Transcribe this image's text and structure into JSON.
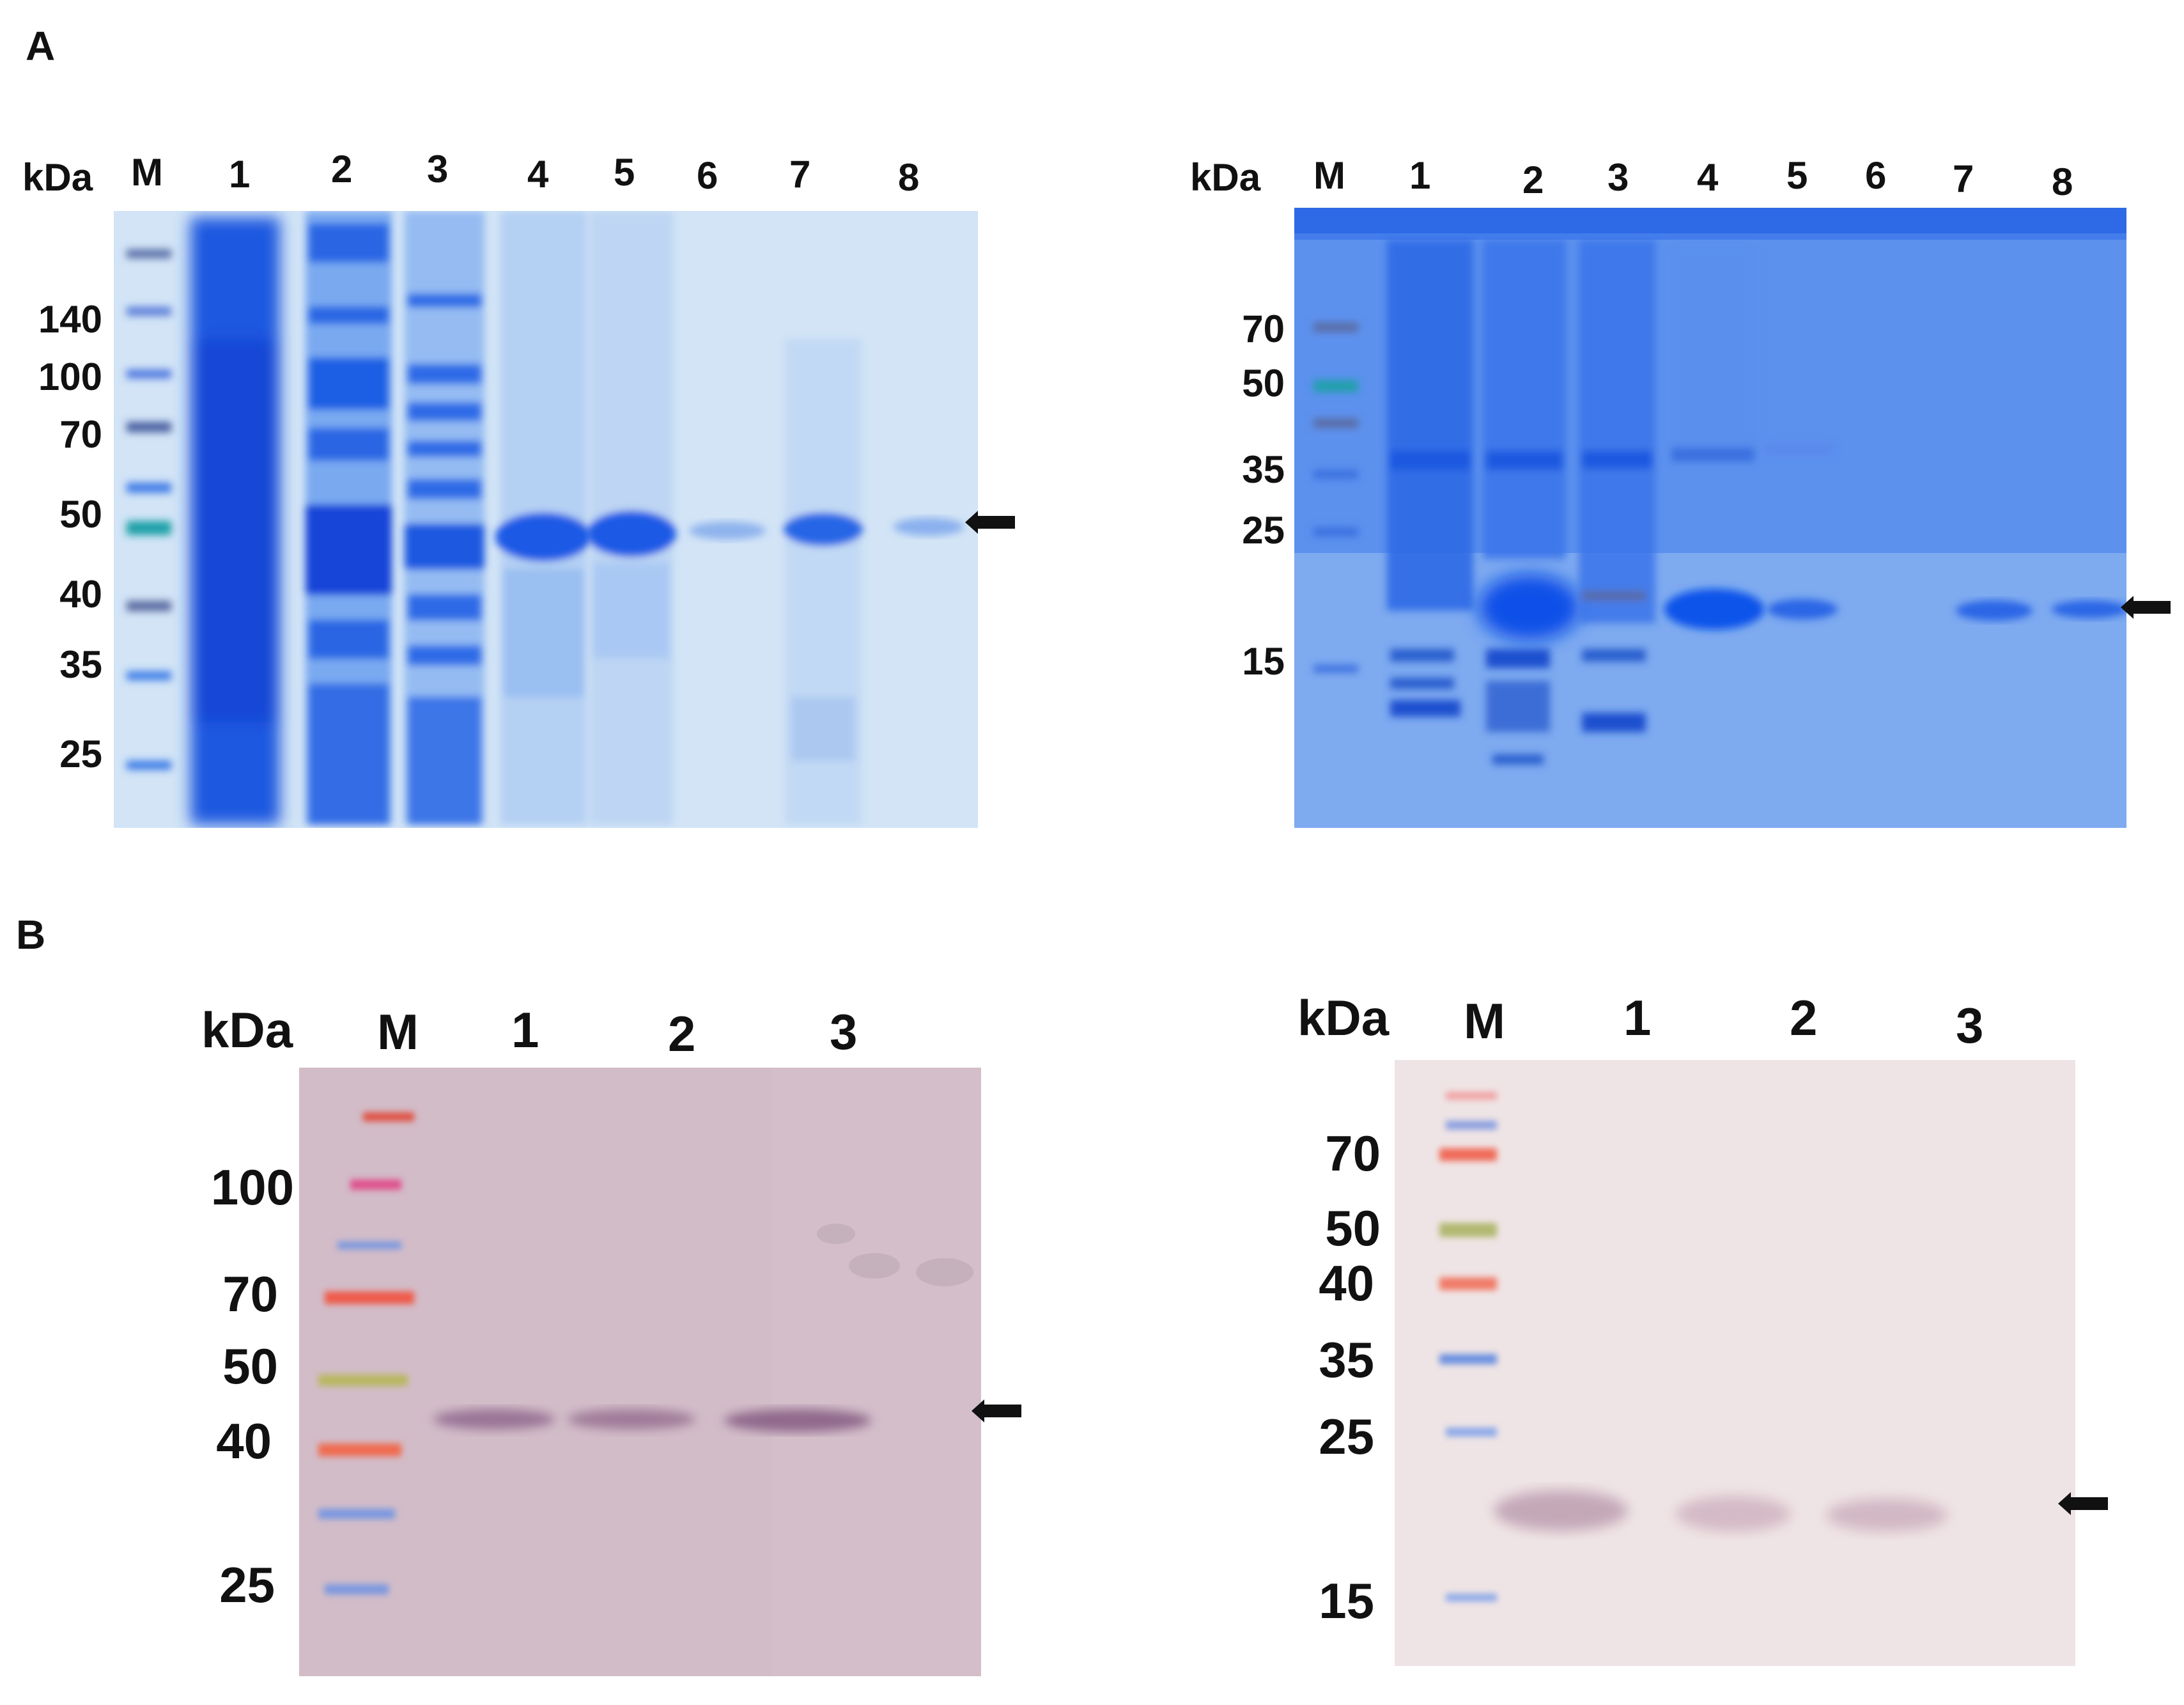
{
  "panels": {
    "A": {
      "letter": "A"
    },
    "B": {
      "letter": "B"
    }
  },
  "gels": {
    "a_left": {
      "unit": "kDa",
      "lanes": [
        "M",
        "1",
        "2",
        "3",
        "4",
        "5",
        "6",
        "7",
        "8"
      ],
      "markers": [
        "140",
        "100",
        "70",
        "50",
        "40",
        "35",
        "25"
      ]
    },
    "a_right": {
      "unit": "kDa",
      "lanes": [
        "M",
        "1",
        "2",
        "3",
        "4",
        "5",
        "6",
        "7",
        "8"
      ],
      "markers": [
        "70",
        "50",
        "35",
        "25",
        "15"
      ]
    },
    "b_left": {
      "unit": "kDa",
      "lanes": [
        "M",
        "1",
        "2",
        "3"
      ],
      "markers": [
        "100",
        "70",
        "50",
        "40",
        "25"
      ]
    },
    "b_right": {
      "unit": "kDa",
      "lanes": [
        "M",
        "1",
        "2",
        "3"
      ],
      "markers": [
        "70",
        "50",
        "40",
        "35",
        "25",
        "15"
      ]
    }
  },
  "colors": {
    "coomassie_bg": "#cfe3f6",
    "coomassie_band": "#1f5fe0",
    "blot_bg": "#dcc7ce",
    "blot_bg_right": "#efe4e4",
    "arrow": "#111111"
  }
}
